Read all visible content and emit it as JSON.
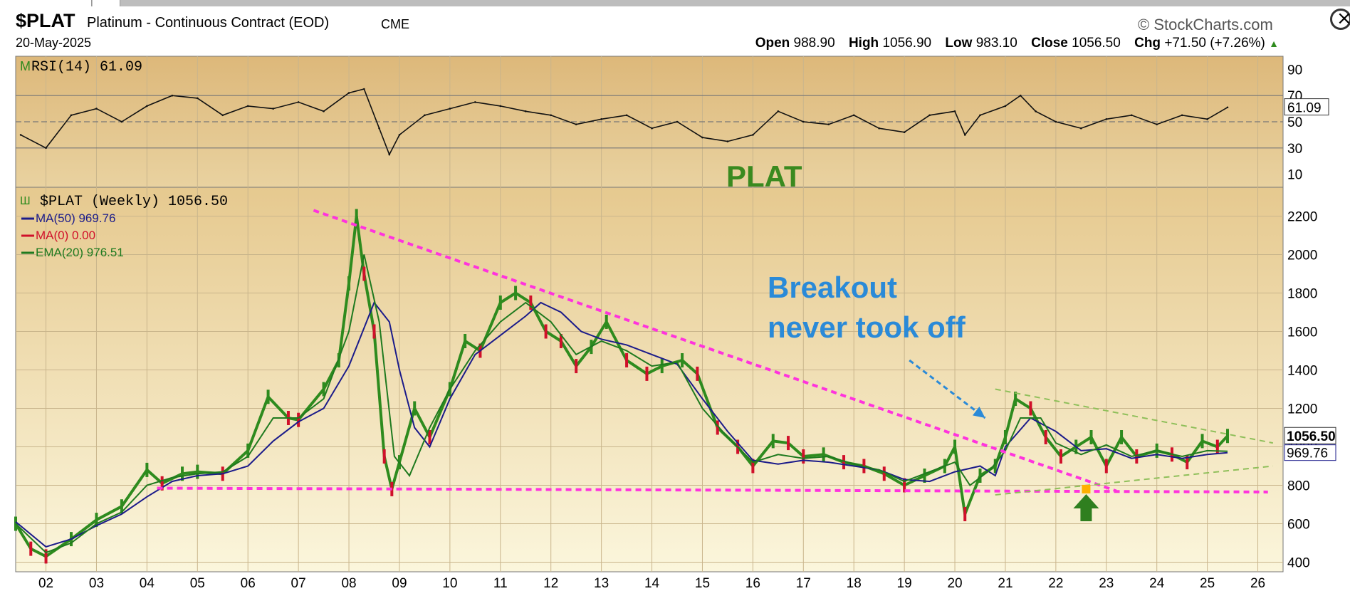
{
  "header": {
    "symbol": "$PLAT",
    "name": "Platinum - Continuous Contract (EOD)",
    "exchange": "CME",
    "brand": "© StockCharts.com",
    "date": "20-May-2025",
    "open_label": "Open",
    "open": "988.90",
    "high_label": "High",
    "high": "1056.90",
    "low_label": "Low",
    "low": "983.10",
    "close_label": "Close",
    "close": "1056.50",
    "chg_label": "Chg",
    "chg": "+71.50 (+7.26%)",
    "chg_icon": "triangle-up-icon"
  },
  "chart_data": [
    {
      "type": "line",
      "panel": "indicator",
      "title": "RSI(14) 61.09",
      "last_value": 61.09,
      "last_value_label": "61.09",
      "ylim": [
        0,
        100
      ],
      "y_ticks": [
        90,
        70,
        50,
        30,
        10
      ],
      "reference_lines": [
        70,
        50,
        30
      ],
      "x": [
        2001.5,
        2002,
        2002.5,
        2003,
        2003.5,
        2004,
        2004.5,
        2005,
        2005.5,
        2006,
        2006.5,
        2007,
        2007.5,
        2008,
        2008.3,
        2008.6,
        2008.8,
        2009,
        2009.5,
        2010,
        2010.5,
        2011,
        2011.5,
        2012,
        2012.5,
        2013,
        2013.5,
        2014,
        2014.5,
        2015,
        2015.5,
        2016,
        2016.5,
        2017,
        2017.5,
        2018,
        2018.5,
        2019,
        2019.5,
        2020,
        2020.2,
        2020.5,
        2021,
        2021.3,
        2021.6,
        2022,
        2022.5,
        2023,
        2023.5,
        2024,
        2024.5,
        2025,
        2025.4
      ],
      "values": [
        40,
        30,
        55,
        60,
        50,
        62,
        70,
        68,
        55,
        62,
        60,
        65,
        58,
        72,
        75,
        45,
        25,
        40,
        55,
        60,
        65,
        62,
        58,
        55,
        48,
        52,
        55,
        45,
        50,
        38,
        35,
        40,
        58,
        50,
        48,
        55,
        45,
        42,
        55,
        58,
        40,
        55,
        62,
        70,
        58,
        50,
        45,
        52,
        55,
        48,
        55,
        52,
        61
      ],
      "annotation": "PLAT",
      "annotation_color": "#3a8a1f"
    },
    {
      "type": "line",
      "panel": "price",
      "title": "$PLAT (Weekly) 1056.50",
      "xlabel": "",
      "ylabel": "",
      "ylim": [
        350,
        2350
      ],
      "y_ticks": [
        2200,
        2000,
        1800,
        1600,
        1400,
        1200,
        1000,
        800,
        600,
        400
      ],
      "x_ticks": [
        "02",
        "03",
        "04",
        "05",
        "06",
        "07",
        "08",
        "09",
        "10",
        "11",
        "12",
        "13",
        "14",
        "15",
        "16",
        "17",
        "18",
        "19",
        "20",
        "21",
        "22",
        "23",
        "24",
        "25",
        "26"
      ],
      "x_tick_years": [
        2002,
        2003,
        2004,
        2005,
        2006,
        2007,
        2008,
        2009,
        2010,
        2011,
        2012,
        2013,
        2014,
        2015,
        2016,
        2017,
        2018,
        2019,
        2020,
        2021,
        2022,
        2023,
        2024,
        2025,
        2026
      ],
      "xlim": [
        2001.4,
        2026.5
      ],
      "grid": true,
      "legend_position": "top-left",
      "series": [
        {
          "name": "$PLAT (Weekly) 1056.50",
          "color": "#2e8b1e",
          "down_color": "#d0102a",
          "x": [
            2001.4,
            2001.7,
            2002,
            2002.5,
            2003,
            2003.5,
            2004,
            2004.3,
            2004.7,
            2005,
            2005.5,
            2006,
            2006.4,
            2006.8,
            2007,
            2007.5,
            2007.8,
            2008,
            2008.15,
            2008.3,
            2008.5,
            2008.7,
            2008.85,
            2009,
            2009.3,
            2009.6,
            2010,
            2010.3,
            2010.6,
            2011,
            2011.3,
            2011.6,
            2011.9,
            2012.2,
            2012.5,
            2012.8,
            2013.1,
            2013.5,
            2013.9,
            2014.2,
            2014.6,
            2014.9,
            2015.3,
            2015.7,
            2016,
            2016.4,
            2016.7,
            2017,
            2017.4,
            2017.8,
            2018.2,
            2018.6,
            2019,
            2019.4,
            2019.8,
            2020,
            2020.2,
            2020.5,
            2020.8,
            2021,
            2021.2,
            2021.5,
            2021.8,
            2022.1,
            2022.4,
            2022.7,
            2023,
            2023.3,
            2023.6,
            2024,
            2024.3,
            2024.6,
            2024.9,
            2025.2,
            2025.4
          ],
          "values": [
            600,
            470,
            430,
            520,
            620,
            690,
            880,
            810,
            860,
            870,
            860,
            980,
            1260,
            1150,
            1140,
            1300,
            1450,
            1850,
            2200,
            1900,
            1600,
            950,
            780,
            920,
            1200,
            1050,
            1300,
            1550,
            1500,
            1750,
            1800,
            1750,
            1600,
            1550,
            1420,
            1520,
            1650,
            1450,
            1380,
            1420,
            1450,
            1380,
            1100,
            1000,
            900,
            1030,
            1020,
            950,
            960,
            920,
            900,
            860,
            800,
            850,
            900,
            1000,
            650,
            850,
            900,
            1050,
            1250,
            1200,
            1050,
            950,
            1000,
            1050,
            900,
            1050,
            950,
            980,
            960,
            920,
            1030,
            1000,
            1056.5
          ]
        },
        {
          "name": "MA(50) 969.76",
          "color": "#1b1b8a",
          "x": [
            2001.4,
            2002,
            2002.5,
            2003,
            2003.5,
            2004,
            2004.5,
            2005,
            2005.5,
            2006,
            2006.5,
            2007,
            2007.5,
            2008,
            2008.5,
            2008.8,
            2009,
            2009.3,
            2009.6,
            2010,
            2010.5,
            2011,
            2011.5,
            2011.8,
            2012.2,
            2012.6,
            2013,
            2013.5,
            2014,
            2014.5,
            2015,
            2015.5,
            2016,
            2016.5,
            2017,
            2017.5,
            2018,
            2018.5,
            2019,
            2019.5,
            2020,
            2020.5,
            2020.8,
            2021,
            2021.5,
            2022,
            2022.5,
            2023,
            2023.5,
            2024,
            2024.5,
            2025,
            2025.4
          ],
          "values": [
            610,
            480,
            520,
            590,
            650,
            740,
            820,
            850,
            860,
            900,
            1030,
            1130,
            1200,
            1420,
            1750,
            1650,
            1400,
            1100,
            1000,
            1250,
            1480,
            1580,
            1680,
            1750,
            1700,
            1600,
            1560,
            1530,
            1480,
            1430,
            1250,
            1080,
            930,
            910,
            930,
            920,
            900,
            880,
            830,
            820,
            870,
            900,
            850,
            1000,
            1150,
            1080,
            980,
            990,
            940,
            960,
            940,
            960,
            969.76
          ]
        },
        {
          "name": "MA(0) 0.00",
          "color": "#d0102a",
          "x": [],
          "values": []
        },
        {
          "name": "EMA(20) 976.51",
          "color": "#1f7a1f",
          "x": [
            2001.4,
            2002,
            2002.5,
            2003,
            2003.5,
            2004,
            2004.5,
            2005,
            2005.5,
            2006,
            2006.5,
            2007,
            2007.5,
            2008,
            2008.3,
            2008.6,
            2008.9,
            2009.2,
            2009.6,
            2010,
            2010.5,
            2011,
            2011.5,
            2012,
            2012.5,
            2013,
            2013.5,
            2014,
            2014.5,
            2015,
            2015.5,
            2016,
            2016.5,
            2017,
            2017.5,
            2018,
            2018.5,
            2019,
            2019.5,
            2020,
            2020.3,
            2020.7,
            2021,
            2021.3,
            2021.7,
            2022,
            2022.5,
            2023,
            2023.5,
            2024,
            2024.5,
            2025,
            2025.4
          ],
          "values": [
            600,
            450,
            500,
            600,
            660,
            800,
            840,
            860,
            870,
            950,
            1150,
            1150,
            1250,
            1600,
            2000,
            1650,
            950,
            850,
            1100,
            1300,
            1500,
            1650,
            1750,
            1650,
            1480,
            1550,
            1500,
            1420,
            1440,
            1200,
            1050,
            920,
            960,
            940,
            950,
            910,
            880,
            820,
            870,
            920,
            800,
            880,
            980,
            1150,
            1150,
            1020,
            960,
            1010,
            950,
            980,
            950,
            980,
            976.51
          ]
        }
      ],
      "last_price_label": "1056.50",
      "last_ma_label": "969.76",
      "trendlines": [
        {
          "style": "dashed",
          "color": "#ff33dd",
          "from": [
            2007.3,
            2230
          ],
          "to": [
            2023.2,
            770
          ]
        },
        {
          "style": "dashed",
          "color": "#ff33dd",
          "from": [
            2004.2,
            785
          ],
          "to": [
            2026.2,
            765
          ]
        },
        {
          "style": "dashed",
          "color": "#8fbf5a",
          "from": [
            2020.8,
            1300
          ],
          "to": [
            2026.3,
            1020
          ]
        },
        {
          "style": "dashed",
          "color": "#8fbf5a",
          "from": [
            2020.8,
            750
          ],
          "to": [
            2026.3,
            900
          ]
        }
      ],
      "annotations": [
        {
          "text": "Breakout",
          "color": "#2a8ad8"
        },
        {
          "text": "never took off",
          "color": "#2a8ad8"
        }
      ],
      "arrows": [
        {
          "style": "dashed",
          "color": "#2a8ad8",
          "from": [
            2019.1,
            1450
          ],
          "to": [
            2020.6,
            1150
          ]
        }
      ],
      "markers": [
        {
          "name": "up-arrow-icon",
          "color": "#2f7f1f",
          "x": 2022.6,
          "y": 650
        },
        {
          "name": "square-marker",
          "color": "#ffb000",
          "x": 2022.6,
          "y": 780
        }
      ]
    }
  ]
}
